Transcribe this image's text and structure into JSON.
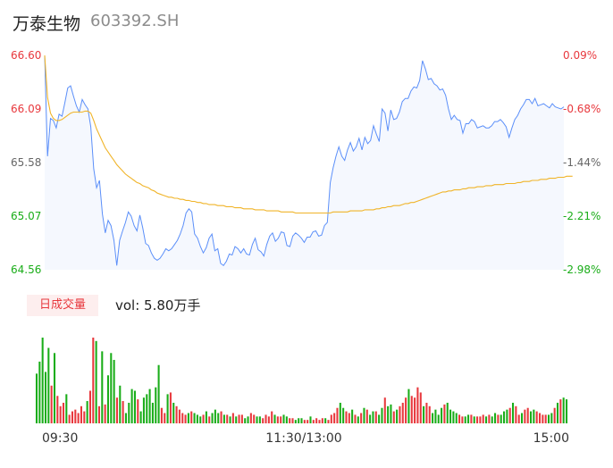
{
  "header": {
    "stock_name": "万泰生物",
    "stock_code": "603392.SH"
  },
  "volume_panel": {
    "tab_label": "日成交量",
    "vol_readout": "vol: 5.80万手"
  },
  "colors": {
    "price_line": "#5b8ff9",
    "avg_line": "#f0b429",
    "area_fill": "#f5f8fe",
    "up": "#e8383d",
    "down": "#1aad19",
    "up_text": "#e8383d",
    "down_text": "#1aad19",
    "neutral_text": "#666666"
  },
  "chart_data": {
    "type": "line",
    "y_ticks": [
      {
        "price": "66.60",
        "pct": "0.09%",
        "tone": "up"
      },
      {
        "price": "66.09",
        "pct": "-0.68%",
        "tone": "up"
      },
      {
        "price": "65.58",
        "pct": "-1.44%",
        "tone": "neutral"
      },
      {
        "price": "65.07",
        "pct": "-2.21%",
        "tone": "down"
      },
      {
        "price": "64.56",
        "pct": "-2.98%",
        "tone": "down"
      }
    ],
    "ylim": [
      64.56,
      66.6
    ],
    "x_labels": [
      "09:30",
      "11:30/13:00",
      "15:00"
    ],
    "series": [
      {
        "name": "price",
        "values": [
          66.6,
          65.64,
          66.0,
          65.98,
          65.91,
          66.04,
          66.02,
          66.15,
          66.29,
          66.31,
          66.21,
          66.12,
          66.06,
          66.18,
          66.13,
          66.09,
          65.92,
          65.52,
          65.34,
          65.41,
          65.09,
          64.91,
          65.03,
          64.98,
          64.84,
          64.6,
          64.84,
          64.93,
          65.01,
          65.11,
          65.07,
          64.98,
          64.93,
          65.08,
          64.96,
          64.81,
          64.79,
          64.72,
          64.67,
          64.65,
          64.67,
          64.71,
          64.76,
          64.74,
          64.76,
          64.8,
          64.84,
          64.9,
          64.98,
          65.1,
          65.14,
          65.11,
          64.9,
          64.86,
          64.78,
          64.72,
          64.77,
          64.86,
          64.9,
          64.74,
          64.76,
          64.62,
          64.6,
          64.64,
          64.71,
          64.7,
          64.78,
          64.76,
          64.72,
          64.76,
          64.71,
          64.7,
          64.8,
          64.86,
          64.75,
          64.73,
          64.69,
          64.8,
          64.88,
          64.91,
          64.83,
          64.86,
          64.92,
          64.91,
          64.79,
          64.78,
          64.88,
          64.91,
          64.89,
          64.86,
          64.82,
          64.87,
          64.87,
          64.92,
          64.93,
          64.88,
          64.89,
          64.98,
          65.01,
          65.39,
          65.53,
          65.64,
          65.73,
          65.64,
          65.6,
          65.7,
          65.77,
          65.69,
          65.73,
          65.81,
          65.7,
          65.82,
          65.76,
          65.79,
          65.93,
          65.85,
          65.78,
          66.09,
          66.05,
          65.88,
          66.08,
          65.99,
          66.0,
          66.06,
          66.16,
          66.19,
          66.19,
          66.26,
          66.3,
          66.29,
          66.36,
          66.55,
          66.47,
          66.37,
          66.38,
          66.33,
          66.31,
          66.27,
          66.28,
          66.22,
          66.09,
          65.99,
          66.03,
          65.99,
          65.98,
          65.86,
          65.95,
          65.95,
          65.99,
          65.97,
          65.91,
          65.92,
          65.93,
          65.91,
          65.91,
          65.93,
          65.97,
          65.97,
          65.99,
          65.96,
          65.92,
          65.82,
          65.91,
          65.99,
          66.03,
          66.09,
          66.13,
          66.18,
          66.18,
          66.14,
          66.19,
          66.12,
          66.13,
          66.14,
          66.12,
          66.1,
          66.14,
          66.11,
          66.1,
          66.09,
          66.11
        ]
      },
      {
        "name": "avg",
        "values": [
          66.6,
          66.2,
          66.05,
          66.0,
          65.98,
          65.98,
          65.99,
          66.01,
          66.03,
          66.05,
          66.06,
          66.06,
          66.06,
          66.06,
          66.07,
          66.07,
          66.05,
          65.98,
          65.9,
          65.84,
          65.78,
          65.72,
          65.68,
          65.64,
          65.6,
          65.56,
          65.53,
          65.5,
          65.47,
          65.45,
          65.43,
          65.41,
          65.39,
          65.38,
          65.36,
          65.35,
          65.34,
          65.32,
          65.31,
          65.29,
          65.28,
          65.27,
          65.26,
          65.25,
          65.25,
          65.24,
          65.24,
          65.23,
          65.23,
          65.22,
          65.22,
          65.21,
          65.21,
          65.2,
          65.2,
          65.19,
          65.19,
          65.18,
          65.18,
          65.18,
          65.17,
          65.17,
          65.17,
          65.16,
          65.16,
          65.16,
          65.15,
          65.15,
          65.15,
          65.14,
          65.14,
          65.14,
          65.14,
          65.13,
          65.13,
          65.13,
          65.13,
          65.12,
          65.12,
          65.12,
          65.12,
          65.12,
          65.11,
          65.11,
          65.11,
          65.11,
          65.11,
          65.1,
          65.1,
          65.1,
          65.1,
          65.1,
          65.1,
          65.1,
          65.1,
          65.1,
          65.1,
          65.1,
          65.1,
          65.1,
          65.11,
          65.11,
          65.11,
          65.11,
          65.11,
          65.11,
          65.12,
          65.12,
          65.12,
          65.12,
          65.12,
          65.13,
          65.13,
          65.13,
          65.13,
          65.14,
          65.14,
          65.15,
          65.15,
          65.16,
          65.16,
          65.17,
          65.17,
          65.17,
          65.18,
          65.19,
          65.19,
          65.2,
          65.2,
          65.21,
          65.22,
          65.23,
          65.24,
          65.25,
          65.26,
          65.27,
          65.28,
          65.29,
          65.3,
          65.3,
          65.31,
          65.31,
          65.32,
          65.32,
          65.32,
          65.33,
          65.33,
          65.34,
          65.34,
          65.34,
          65.35,
          65.35,
          65.35,
          65.36,
          65.36,
          65.36,
          65.37,
          65.37,
          65.37,
          65.37,
          65.38,
          65.38,
          65.38,
          65.38,
          65.39,
          65.39,
          65.4,
          65.4,
          65.4,
          65.41,
          65.41,
          65.41,
          65.42,
          65.42,
          65.42,
          65.43,
          65.43,
          65.43,
          65.44,
          65.44,
          65.44,
          65.45,
          65.45,
          65.45
        ]
      }
    ],
    "volume": {
      "ylim": [
        0,
        100
      ],
      "values": [
        58,
        72,
        100,
        60,
        88,
        44,
        82,
        32,
        20,
        24,
        34,
        10,
        14,
        16,
        12,
        20,
        14,
        26,
        38,
        100,
        96,
        20,
        84,
        22,
        56,
        82,
        74,
        30,
        44,
        26,
        12,
        24,
        40,
        38,
        28,
        14,
        30,
        34,
        40,
        24,
        42,
        68,
        18,
        12,
        34,
        36,
        24,
        20,
        16,
        12,
        10,
        12,
        14,
        12,
        10,
        8,
        10,
        14,
        8,
        12,
        16,
        12,
        14,
        10,
        10,
        8,
        12,
        8,
        10,
        10,
        6,
        8,
        12,
        10,
        8,
        8,
        6,
        10,
        8,
        14,
        10,
        8,
        8,
        10,
        8,
        6,
        6,
        4,
        6,
        6,
        4,
        4,
        8,
        4,
        6,
        4,
        6,
        6,
        4,
        10,
        12,
        18,
        24,
        18,
        14,
        12,
        16,
        10,
        8,
        12,
        18,
        16,
        10,
        14,
        14,
        10,
        18,
        30,
        20,
        22,
        14,
        16,
        20,
        24,
        30,
        40,
        32,
        30,
        42,
        36,
        20,
        24,
        20,
        12,
        16,
        10,
        18,
        22,
        24,
        16,
        14,
        12,
        10,
        8,
        8,
        10,
        10,
        8,
        8,
        8,
        10,
        8,
        10,
        8,
        12,
        10,
        10,
        14,
        16,
        18,
        24,
        20,
        10,
        12,
        16,
        18,
        14,
        16,
        14,
        12,
        10,
        10,
        10,
        12,
        18,
        24,
        28,
        30,
        28
      ],
      "up": [
        false,
        false,
        false,
        false,
        false,
        true,
        false,
        true,
        true,
        true,
        false,
        true,
        true,
        true,
        true,
        true,
        true,
        false,
        true,
        true,
        false,
        true,
        false,
        true,
        false,
        false,
        false,
        true,
        false,
        true,
        false,
        false,
        false,
        false,
        true,
        false,
        false,
        false,
        false,
        false,
        false,
        false,
        true,
        true,
        false,
        true,
        false,
        true,
        true,
        true,
        true,
        false,
        true,
        false,
        false,
        false,
        true,
        false,
        true,
        false,
        false,
        false,
        true,
        false,
        true,
        false,
        true,
        false,
        true,
        true,
        false,
        false,
        true,
        true,
        false,
        false,
        true,
        true,
        true,
        true,
        false,
        true,
        true,
        false,
        false,
        true,
        true,
        false,
        false,
        false,
        true,
        true,
        false,
        true,
        true,
        true,
        true,
        false,
        true,
        true,
        true,
        true,
        false,
        false,
        true,
        true,
        false,
        true,
        false,
        true,
        false,
        true,
        false,
        false,
        true,
        false,
        false,
        true,
        false,
        false,
        true,
        false,
        true,
        true,
        true,
        false,
        true,
        true,
        true,
        true,
        false,
        true,
        true,
        false,
        false,
        false,
        false,
        true,
        false,
        false,
        false,
        false,
        true,
        true,
        false,
        false,
        true,
        false,
        true,
        true,
        true,
        false,
        true,
        false,
        false,
        true,
        false,
        false,
        false,
        true,
        false,
        true,
        true,
        false,
        true,
        true,
        false,
        false,
        true,
        true,
        true,
        true,
        false,
        false,
        true,
        false,
        true,
        false,
        false,
        true,
        false
      ]
    }
  }
}
